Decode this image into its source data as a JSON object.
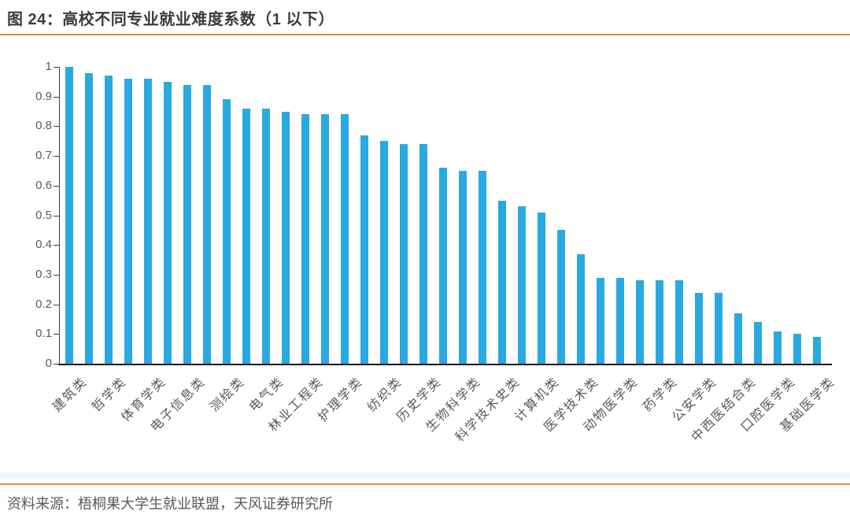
{
  "page": {
    "title": "图 24：高校不同专业就业难度系数（1 以下）",
    "source": "资料来源：梧桐果大学生就业联盟，天风证券研究所"
  },
  "colors": {
    "bar": "#29a9e1",
    "accent_orange": "#ec8c3a",
    "title_text": "#3c3c3c",
    "axis_text": "#595959",
    "axis_line": "#1a1a1a"
  },
  "chart_data": {
    "type": "bar",
    "title": "高校不同专业就业难度系数（1以下）",
    "xlabel": "",
    "ylabel": "",
    "ylim": [
      0,
      1
    ],
    "y_ticks": [
      "0",
      "0.1",
      "0.2",
      "0.3",
      "0.4",
      "0.5",
      "0.6",
      "0.7",
      "0.8",
      "0.9",
      "1"
    ],
    "grid": false,
    "legend": false,
    "note": "39 bars sorted descending; category labels shown under every other bar",
    "bars": [
      {
        "label": "建筑类",
        "value": 1.0
      },
      {
        "label": "",
        "value": 0.98
      },
      {
        "label": "哲学类",
        "value": 0.97
      },
      {
        "label": "",
        "value": 0.96
      },
      {
        "label": "体育学类",
        "value": 0.96
      },
      {
        "label": "",
        "value": 0.95
      },
      {
        "label": "电子信息类",
        "value": 0.94
      },
      {
        "label": "",
        "value": 0.94
      },
      {
        "label": "测绘类",
        "value": 0.89
      },
      {
        "label": "",
        "value": 0.86
      },
      {
        "label": "电气类",
        "value": 0.86
      },
      {
        "label": "",
        "value": 0.85
      },
      {
        "label": "林业工程类",
        "value": 0.84
      },
      {
        "label": "",
        "value": 0.84
      },
      {
        "label": "护理学类",
        "value": 0.84
      },
      {
        "label": "",
        "value": 0.77
      },
      {
        "label": "纺织类",
        "value": 0.75
      },
      {
        "label": "",
        "value": 0.74
      },
      {
        "label": "历史学类",
        "value": 0.74
      },
      {
        "label": "",
        "value": 0.66
      },
      {
        "label": "生物科学类",
        "value": 0.65
      },
      {
        "label": "",
        "value": 0.65
      },
      {
        "label": "科学技术史类",
        "value": 0.55
      },
      {
        "label": "",
        "value": 0.53
      },
      {
        "label": "计算机类",
        "value": 0.51
      },
      {
        "label": "",
        "value": 0.45
      },
      {
        "label": "医学技术类",
        "value": 0.37
      },
      {
        "label": "",
        "value": 0.29
      },
      {
        "label": "动物医学类",
        "value": 0.29
      },
      {
        "label": "",
        "value": 0.28
      },
      {
        "label": "药学类",
        "value": 0.28
      },
      {
        "label": "",
        "value": 0.28
      },
      {
        "label": "公安学类",
        "value": 0.24
      },
      {
        "label": "",
        "value": 0.24
      },
      {
        "label": "中西医结合类",
        "value": 0.17
      },
      {
        "label": "",
        "value": 0.14
      },
      {
        "label": "口腔医学类",
        "value": 0.11
      },
      {
        "label": "",
        "value": 0.1
      },
      {
        "label": "基础医学类",
        "value": 0.09
      }
    ]
  }
}
